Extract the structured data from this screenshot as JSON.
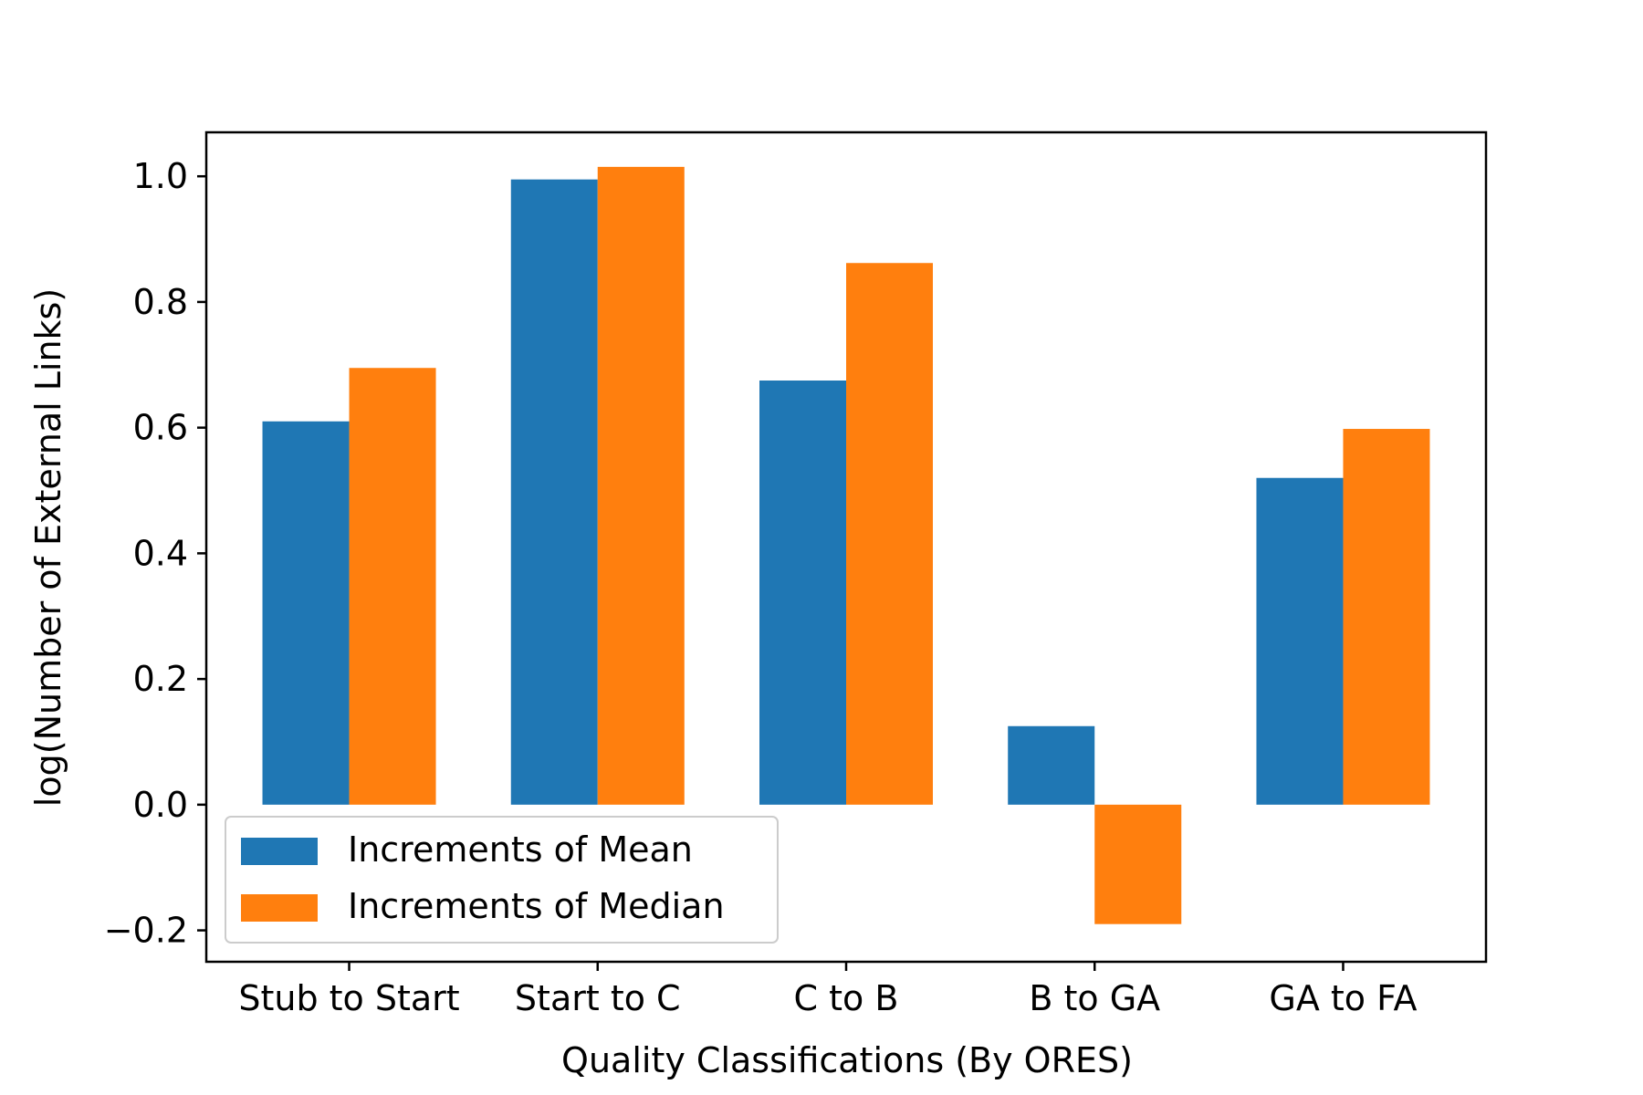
{
  "chart_data": {
    "type": "bar",
    "xlabel": "Quality Classifications (By ORES)",
    "ylabel": "log(Number of External Links)",
    "categories": [
      "Stub to Start",
      "Start to C",
      "C to B",
      "B to GA",
      "GA to FA"
    ],
    "series": [
      {
        "name": "Increments of Mean",
        "color": "#1f77b4",
        "values": [
          0.61,
          0.995,
          0.675,
          0.125,
          0.52
        ]
      },
      {
        "name": "Increments of Median",
        "color": "#ff7f0e",
        "values": [
          0.695,
          1.015,
          0.862,
          -0.19,
          0.598
        ]
      }
    ],
    "ylim": [
      -0.25,
      1.07
    ],
    "yticks": [
      -0.2,
      0.0,
      0.2,
      0.4,
      0.6,
      0.8,
      1.0
    ],
    "ytick_labels": [
      "−0.2",
      "0.0",
      "0.2",
      "0.4",
      "0.6",
      "0.8",
      "1.0"
    ],
    "grid": false,
    "legend_position": "lower-left"
  }
}
